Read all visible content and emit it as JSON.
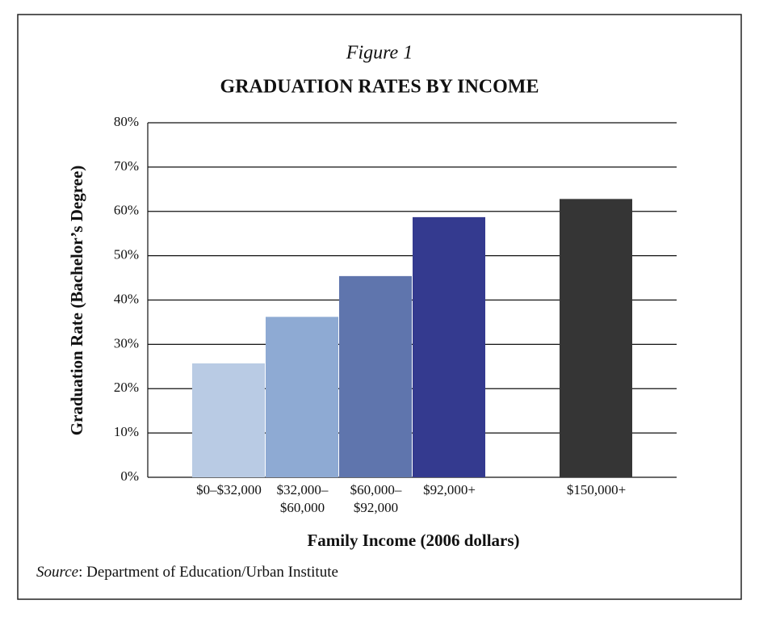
{
  "chart_data": {
    "type": "bar",
    "figure_label": "Figure 1",
    "title": "GRADUATION RATES BY INCOME",
    "y_label": "Graduation Rate (Bachelor’s Degree)",
    "x_label": "Family Income (2006 dollars)",
    "source_label": "Source",
    "source_text": ": Department of Education/Urban Institute",
    "categories": [
      "$0–$32,000",
      "$32,000–\n$60,000",
      "$60,000–\n$92,000",
      "$92,000+",
      null,
      "$150,000+"
    ],
    "values": [
      25.7,
      36.2,
      45.4,
      58.7,
      null,
      62.8
    ],
    "colors": [
      "#b9cbe4",
      "#8eaad3",
      "#5f75ad",
      "#343a8f",
      null,
      "#353535"
    ],
    "ylim": [
      0,
      80
    ],
    "yticks": [
      {
        "value": 0,
        "label": "0%"
      },
      {
        "value": 10,
        "label": "10%"
      },
      {
        "value": 20,
        "label": "20%"
      },
      {
        "value": 30,
        "label": "30%"
      },
      {
        "value": 40,
        "label": "40%"
      },
      {
        "value": 50,
        "label": "50%"
      },
      {
        "value": 60,
        "label": "60%"
      },
      {
        "value": 70,
        "label": "70%"
      },
      {
        "value": 80,
        "label": "80%"
      }
    ],
    "grid": true
  }
}
